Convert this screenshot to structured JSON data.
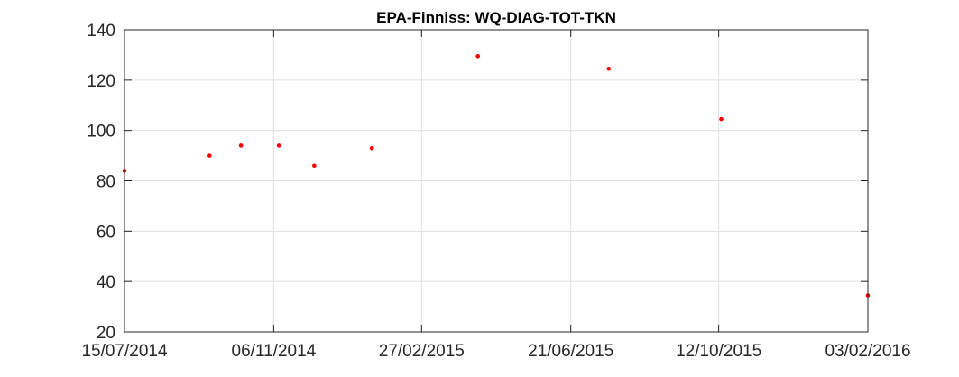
{
  "chart_data": {
    "type": "scatter",
    "title": "EPA-Finniss: WQ-DIAG-TOT-TKN",
    "xlabel": "",
    "ylabel": "",
    "x_axis": {
      "type": "date",
      "range": [
        "2014-07-15",
        "2016-02-03"
      ],
      "ticks": [
        {
          "date": "2014-07-15",
          "label": "15/07/2014"
        },
        {
          "date": "2014-11-06",
          "label": "06/11/2014"
        },
        {
          "date": "2015-02-27",
          "label": "27/02/2015"
        },
        {
          "date": "2015-06-21",
          "label": "21/06/2015"
        },
        {
          "date": "2015-10-12",
          "label": "12/10/2015"
        },
        {
          "date": "2016-02-03",
          "label": "03/02/2016"
        }
      ]
    },
    "y_axis": {
      "range": [
        20,
        140
      ],
      "ticks": [
        20,
        40,
        60,
        80,
        100,
        120,
        140
      ]
    },
    "grid": true,
    "series": [
      {
        "name": "WQ-DIAG-TOT-TKN",
        "color": "#ff0000",
        "points": [
          {
            "x": "2014-07-15",
            "y": 84
          },
          {
            "x": "2014-09-18",
            "y": 90
          },
          {
            "x": "2014-10-12",
            "y": 94
          },
          {
            "x": "2014-11-10",
            "y": 94
          },
          {
            "x": "2014-12-07",
            "y": 86
          },
          {
            "x": "2015-01-20",
            "y": 93
          },
          {
            "x": "2015-04-11",
            "y": 129.5
          },
          {
            "x": "2015-07-20",
            "y": 124.5
          },
          {
            "x": "2015-10-14",
            "y": 104.5
          },
          {
            "x": "2016-02-03",
            "y": 34.5
          }
        ]
      }
    ]
  }
}
